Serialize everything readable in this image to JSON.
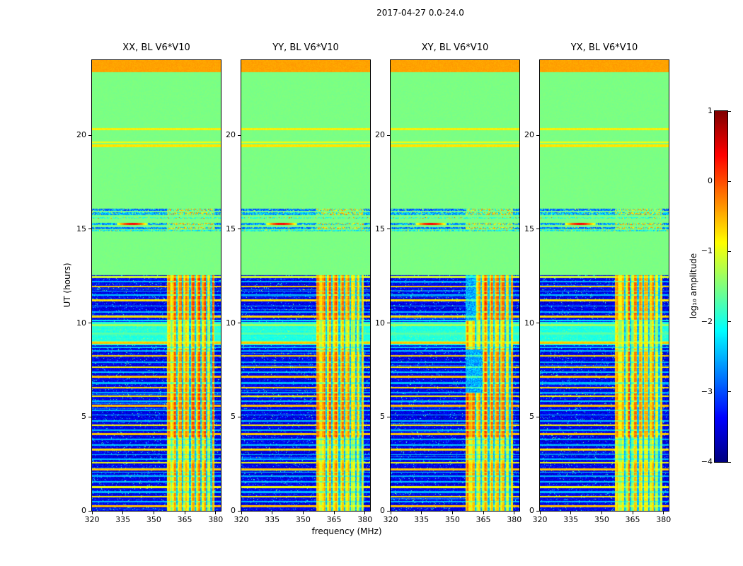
{
  "figure": {
    "background": "#ffffff",
    "frame_color": "#000000"
  },
  "chart_data": {
    "type": "heatmap",
    "title": "2017-04-27 0.0-24.0",
    "panels": [
      {
        "label": "XX, BL V6*V10",
        "seed": 1,
        "mods": []
      },
      {
        "label": "YY, BL V6*V10",
        "seed": 2,
        "mods": []
      },
      {
        "label": "XY, BL V6*V10",
        "seed": 3,
        "mods": [
          {
            "t0": 6.3,
            "t1": 8.6,
            "f0": 356.5,
            "f1": 364.5,
            "value": -3.0
          },
          {
            "t0": 10.15,
            "t1": 12.55,
            "f0": 356.5,
            "f1": 361.0,
            "value": -3.0
          }
        ]
      },
      {
        "label": "YX, BL V6*V10",
        "seed": 4,
        "mods": []
      }
    ],
    "x": {
      "label": "frequency (MHz)",
      "range": [
        320,
        382.5
      ],
      "ticks": [
        320,
        335,
        350,
        365,
        380
      ]
    },
    "y": {
      "label": "UT (hours)",
      "range": [
        0,
        24
      ],
      "ticks": [
        0,
        5,
        10,
        15,
        20
      ]
    },
    "colorbar": {
      "label": "log₁₀ amplitude",
      "range": [
        -4,
        1
      ],
      "ticks": [
        1,
        0,
        -1,
        -2,
        -3,
        -4
      ],
      "colormap": "jet"
    },
    "features": {
      "regions": [
        {
          "name": "top-orange-band",
          "t0": 23.35,
          "t1": 24.0,
          "value": -0.42,
          "noise": 0.12
        },
        {
          "name": "flat-green",
          "t0": 12.55,
          "t1": 23.35,
          "value": -1.52,
          "noise": 0.08
        },
        {
          "name": "noise-blue",
          "t0": 0.0,
          "t1": 12.55,
          "value": -3.75,
          "noise": 0.55
        }
      ],
      "rfi_band": {
        "f0": 356.5,
        "f1": 379.5,
        "segments": [
          [
            0.0,
            0.45,
            -1.0
          ],
          [
            0.45,
            1.9,
            -0.85
          ],
          [
            1.9,
            2.6,
            -0.75
          ],
          [
            2.6,
            3.9,
            -1.05
          ],
          [
            3.9,
            6.3,
            -0.5
          ],
          [
            6.3,
            8.6,
            -0.6
          ],
          [
            8.6,
            10.15,
            -1.0
          ],
          [
            10.15,
            12.55,
            -0.5
          ]
        ],
        "notches": [
          361.2,
          363.9,
          367.6,
          370.1,
          372.9,
          375.6,
          377.9
        ]
      },
      "cyan_band": {
        "t0": 8.8,
        "t1": 10.05,
        "value": -1.95,
        "lines": [
          [
            9.0,
            -1.45
          ],
          [
            9.45,
            -1.7
          ],
          [
            9.9,
            -1.35
          ]
        ]
      },
      "stripes_upper": [
        [
          19.45,
          0.07,
          -0.75
        ],
        [
          19.62,
          0.04,
          -0.95
        ],
        [
          20.33,
          0.05,
          -0.8
        ]
      ],
      "upper_events": [
        {
          "t": 16.02,
          "hw": 0.05,
          "value": -3.3,
          "rfi": true
        },
        {
          "t": 15.82,
          "hw": 0.09,
          "value": -3.0,
          "rfi": true
        },
        {
          "t": 15.6,
          "hw": 0.03,
          "value": -2.3,
          "rfi": false
        },
        {
          "t": 15.28,
          "hw": 0.07,
          "value": -3.1,
          "rfi": true,
          "blob": {
            "f0": 332,
            "f1": 347,
            "peak": 0.35
          }
        },
        {
          "t": 15.05,
          "hw": 0.05,
          "value": -3.2,
          "rfi": true
        },
        {
          "t": 14.93,
          "hw": 0.03,
          "value": -2.6,
          "rfi": false
        }
      ],
      "stripes_lower": [
        [
          0.25,
          0.06,
          -0.55
        ],
        [
          0.75,
          0.05,
          -0.8
        ],
        [
          1.25,
          0.05,
          -0.9
        ],
        [
          2.2,
          0.06,
          -0.6
        ],
        [
          2.55,
          0.04,
          -0.9
        ],
        [
          3.25,
          0.05,
          -0.7
        ],
        [
          4.1,
          0.05,
          -0.6
        ],
        [
          4.55,
          0.04,
          -0.8
        ],
        [
          5.6,
          0.06,
          -0.55
        ],
        [
          6.1,
          0.04,
          -0.8
        ],
        [
          6.55,
          0.05,
          -0.7
        ],
        [
          7.15,
          0.05,
          -0.6
        ],
        [
          7.65,
          0.04,
          -0.8
        ],
        [
          8.25,
          0.05,
          -0.65
        ],
        [
          8.95,
          0.06,
          -0.6
        ],
        [
          10.35,
          0.05,
          -0.7
        ],
        [
          11.2,
          0.05,
          -0.75
        ],
        [
          11.95,
          0.05,
          -0.65
        ],
        [
          12.45,
          0.06,
          -1.1
        ],
        [
          0.5,
          0.04,
          -2.4
        ],
        [
          1.0,
          0.04,
          -2.45
        ],
        [
          1.55,
          0.04,
          -2.4
        ],
        [
          1.85,
          0.04,
          -2.5
        ],
        [
          2.05,
          0.03,
          -2.4
        ],
        [
          2.75,
          0.04,
          -2.45
        ],
        [
          3.0,
          0.03,
          -2.5
        ],
        [
          3.5,
          0.04,
          -2.4
        ],
        [
          3.8,
          0.03,
          -2.5
        ],
        [
          4.3,
          0.04,
          -2.45
        ],
        [
          4.8,
          0.04,
          -2.4
        ],
        [
          5.1,
          0.03,
          -2.5
        ],
        [
          5.35,
          0.03,
          -2.45
        ],
        [
          5.85,
          0.04,
          -2.4
        ],
        [
          6.3,
          0.03,
          -2.5
        ],
        [
          6.8,
          0.04,
          -2.45
        ],
        [
          7.4,
          0.04,
          -2.4
        ],
        [
          7.9,
          0.04,
          -2.5
        ],
        [
          8.5,
          0.04,
          -2.45
        ],
        [
          8.7,
          0.03,
          -2.4
        ],
        [
          10.12,
          0.04,
          -2.2
        ],
        [
          10.6,
          0.04,
          -2.45
        ],
        [
          10.9,
          0.03,
          -2.5
        ],
        [
          11.5,
          0.04,
          -2.4
        ],
        [
          11.7,
          0.03,
          -2.5
        ],
        [
          12.2,
          0.04,
          -2.45
        ]
      ]
    }
  }
}
